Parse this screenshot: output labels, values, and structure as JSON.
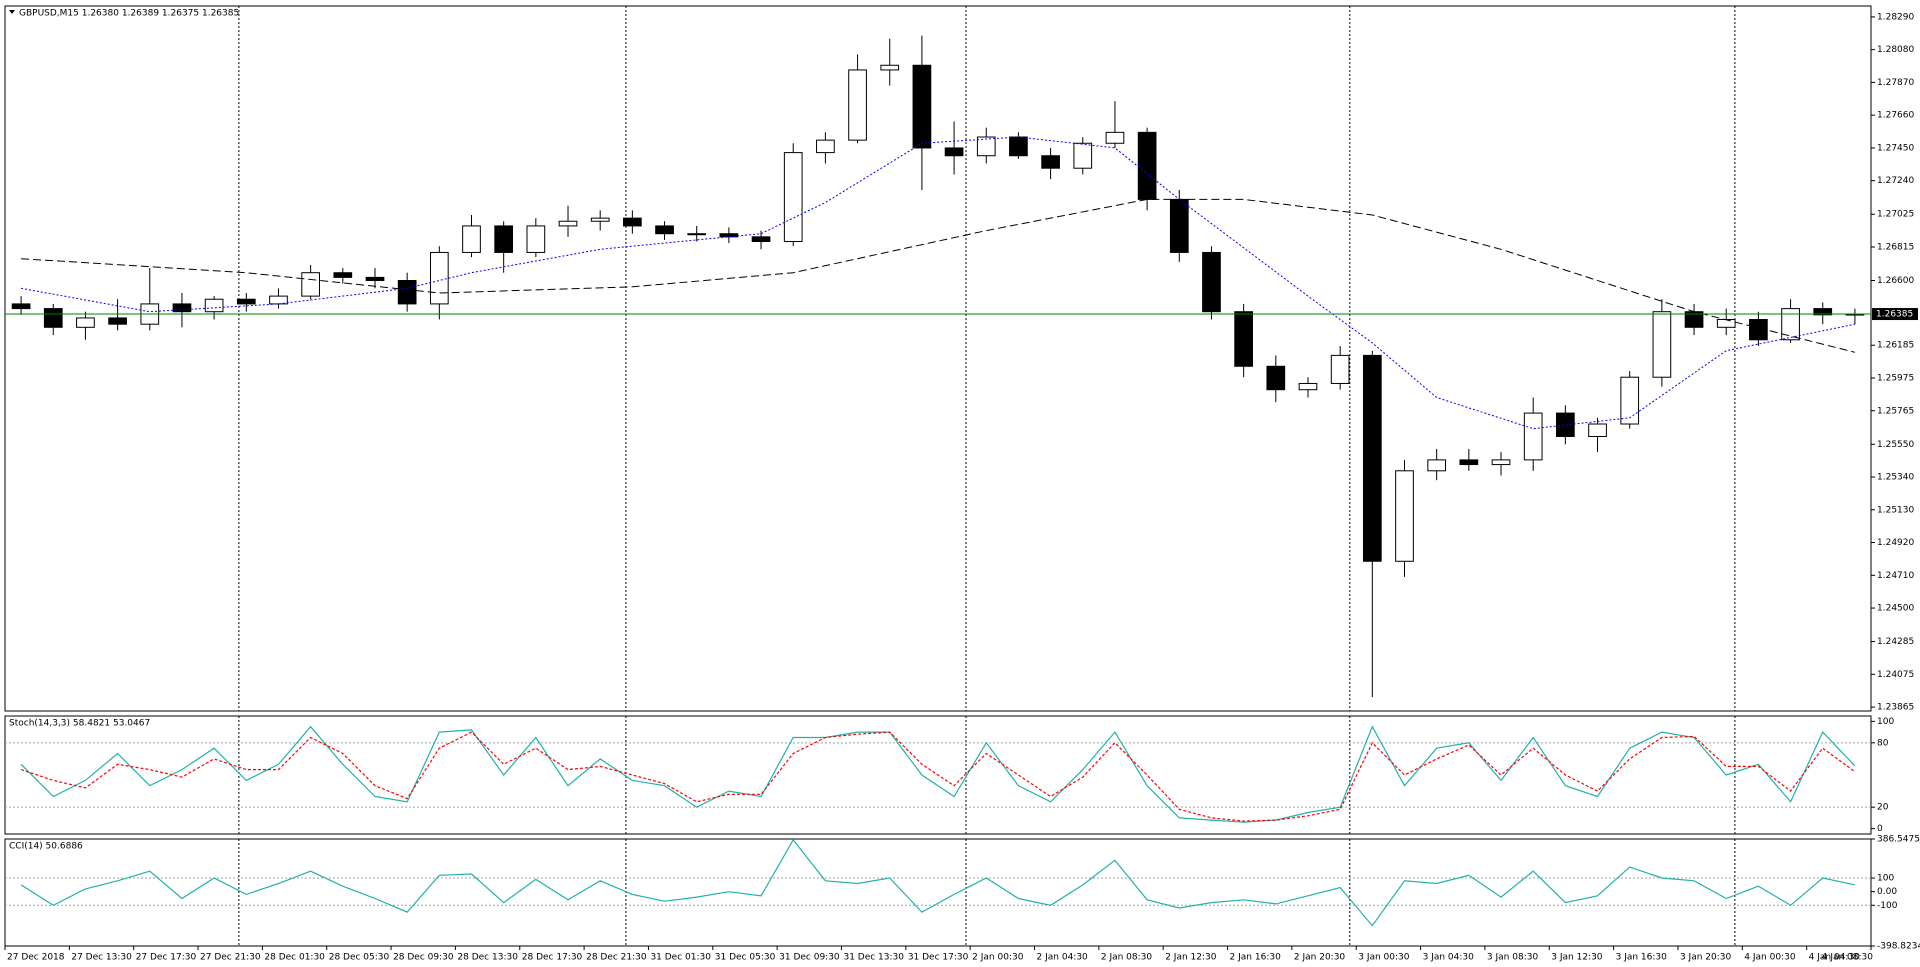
{
  "chart_data": [
    {
      "type": "candlestick",
      "title": "GBPUSD,M15  1.26380 1.26389 1.26375 1.26385",
      "open": [
        1.2645,
        1.2642,
        1.263,
        1.2636,
        1.2632,
        1.2645,
        1.264,
        1.2648,
        1.2645,
        1.265,
        1.2665,
        1.2662,
        1.266,
        1.2645,
        1.2678,
        1.2695,
        1.2678,
        1.2695,
        1.2698,
        1.27,
        1.2695,
        1.269,
        1.269,
        1.2688,
        1.2685,
        1.2742,
        1.275,
        1.2795,
        1.2798,
        1.2745,
        1.274,
        1.2752,
        1.274,
        1.2732,
        1.2748,
        1.2755,
        1.2712,
        1.2678,
        1.264,
        1.2605,
        1.259,
        1.2594,
        1.2612,
        1.248,
        1.2538,
        1.2545,
        1.2542,
        1.2545,
        1.2575,
        1.256,
        1.2568,
        1.2598,
        1.264,
        1.263,
        1.2635,
        1.2622,
        1.2642,
        1.2638
      ],
      "high": [
        1.265,
        1.2645,
        1.264,
        1.2648,
        1.2668,
        1.2652,
        1.265,
        1.2652,
        1.2655,
        1.267,
        1.2668,
        1.2668,
        1.2665,
        1.2682,
        1.2702,
        1.2698,
        1.27,
        1.2708,
        1.2705,
        1.2705,
        1.2698,
        1.2695,
        1.2694,
        1.2692,
        1.2748,
        1.2755,
        1.2805,
        1.2815,
        1.2817,
        1.2762,
        1.2758,
        1.2755,
        1.2745,
        1.2752,
        1.2775,
        1.2758,
        1.2718,
        1.2682,
        1.2645,
        1.2612,
        1.2598,
        1.2618,
        1.2615,
        1.2545,
        1.2552,
        1.2552,
        1.255,
        1.2585,
        1.258,
        1.2572,
        1.2602,
        1.2648,
        1.2645,
        1.2642,
        1.264,
        1.2648,
        1.2646,
        1.2642
      ],
      "low": [
        1.2638,
        1.2625,
        1.2622,
        1.2628,
        1.2628,
        1.263,
        1.2635,
        1.264,
        1.2642,
        1.2648,
        1.2658,
        1.2655,
        1.264,
        1.2635,
        1.2675,
        1.2665,
        1.2675,
        1.2688,
        1.2692,
        1.269,
        1.2686,
        1.2685,
        1.2684,
        1.268,
        1.2682,
        1.2735,
        1.2748,
        1.2785,
        1.2718,
        1.2728,
        1.2735,
        1.2738,
        1.2725,
        1.2728,
        1.2745,
        1.2705,
        1.2672,
        1.2635,
        1.2598,
        1.2582,
        1.2585,
        1.259,
        1.2393,
        1.247,
        1.2532,
        1.2538,
        1.2535,
        1.2538,
        1.2555,
        1.255,
        1.2565,
        1.2592,
        1.2625,
        1.2625,
        1.2618,
        1.262,
        1.2632,
        1.2632
      ],
      "close": [
        1.2642,
        1.263,
        1.2636,
        1.2632,
        1.2645,
        1.264,
        1.2648,
        1.2645,
        1.265,
        1.2665,
        1.2662,
        1.266,
        1.2645,
        1.2678,
        1.2695,
        1.2678,
        1.2695,
        1.2698,
        1.27,
        1.2695,
        1.269,
        1.269,
        1.2688,
        1.2685,
        1.2742,
        1.275,
        1.2795,
        1.2798,
        1.2745,
        1.274,
        1.2752,
        1.274,
        1.2732,
        1.2748,
        1.2755,
        1.2712,
        1.2678,
        1.264,
        1.2605,
        1.259,
        1.2594,
        1.2612,
        1.248,
        1.2538,
        1.2545,
        1.2542,
        1.2545,
        1.2575,
        1.256,
        1.2568,
        1.2598,
        1.264,
        1.263,
        1.2635,
        1.2622,
        1.2642,
        1.2638,
        1.26385
      ],
      "series": [
        {
          "color": "#0000ff",
          "x": [
            0,
            4,
            8,
            12,
            14,
            18,
            23,
            25,
            28,
            31,
            34,
            36,
            40,
            42,
            44,
            47,
            50,
            53,
            57
          ],
          "values": [
            1.2655,
            1.264,
            1.2645,
            1.2655,
            1.2665,
            1.268,
            1.269,
            1.271,
            1.2748,
            1.2752,
            1.2745,
            1.2712,
            1.265,
            1.262,
            1.2585,
            1.2565,
            1.2572,
            1.2615,
            1.2632
          ]
        },
        {
          "color": "#000000",
          "x": [
            0,
            7,
            13,
            19,
            24,
            30,
            35,
            38,
            42,
            46,
            52,
            57
          ],
          "values": [
            1.2674,
            1.2665,
            1.2652,
            1.2656,
            1.2665,
            1.2692,
            1.2712,
            1.2712,
            1.2702,
            1.268,
            1.264,
            1.2614
          ]
        }
      ],
      "bid_line": 1.26385,
      "bid_color": "#008000",
      "ylim": [
        1.2384,
        1.2836
      ],
      "yticks": [
        {
          "value": 1.2829,
          "label": "1.28290"
        },
        {
          "value": 1.2808,
          "label": "1.28080"
        },
        {
          "value": 1.2787,
          "label": "1.27870"
        },
        {
          "value": 1.2766,
          "label": "1.27660"
        },
        {
          "value": 1.2745,
          "label": "1.27450"
        },
        {
          "value": 1.2724,
          "label": "1.27240"
        },
        1.27025,
        1.26815,
        {
          "value": 1.266,
          "label": "1.26600"
        },
        1.26185,
        1.25975,
        1.25765,
        {
          "value": 1.2555,
          "label": "1.25550"
        },
        {
          "value": 1.2534,
          "label": "1.25340"
        },
        {
          "value": 1.2513,
          "label": "1.25130"
        },
        {
          "value": 1.2492,
          "label": "1.24920"
        },
        {
          "value": 1.2471,
          "label": "1.24710"
        },
        {
          "value": 1.245,
          "label": "1.24500"
        },
        1.24285,
        1.24075,
        1.23865
      ],
      "xlim": [
        0,
        58
      ],
      "xticks": [
        {
          "value": 0,
          "label": "27 Dec 2018"
        },
        {
          "value": 2,
          "label": "27 Dec 13:30"
        },
        {
          "value": 4,
          "label": "27 Dec 17:30"
        },
        {
          "value": 6,
          "label": "27 Dec 21:30"
        },
        {
          "value": 8,
          "label": "28 Dec 01:30"
        },
        {
          "value": 10,
          "label": "28 Dec 05:30"
        },
        {
          "value": 12,
          "label": "28 Dec 09:30"
        },
        {
          "value": 14,
          "label": "28 Dec 13:30"
        },
        {
          "value": 16,
          "label": "28 Dec 17:30"
        },
        {
          "value": 18,
          "label": "28 Dec 21:30"
        },
        {
          "value": 20,
          "label": "31 Dec 01:30"
        },
        {
          "value": 22,
          "label": "31 Dec 05:30"
        },
        {
          "value": 24,
          "label": "31 Dec 09:30"
        },
        {
          "value": 26,
          "label": "31 Dec 13:30"
        },
        {
          "value": 28,
          "label": "31 Dec 17:30"
        },
        {
          "value": 30,
          "label": "2 Jan 00:30"
        },
        {
          "value": 32,
          "label": "2 Jan 04:30"
        },
        {
          "value": 34,
          "label": "2 Jan 08:30"
        },
        {
          "value": 36,
          "label": "2 Jan 12:30"
        },
        {
          "value": 38,
          "label": "2 Jan 16:30"
        },
        {
          "value": 40,
          "label": "2 Jan 20:30"
        },
        {
          "value": 42,
          "label": "3 Jan 00:30"
        },
        {
          "value": 44,
          "label": "3 Jan 04:30"
        },
        {
          "value": 46,
          "label": "3 Jan 08:30"
        },
        {
          "value": 48,
          "label": "3 Jan 12:30"
        },
        {
          "value": 50,
          "label": "3 Jan 16:30"
        },
        {
          "value": 52,
          "label": "3 Jan 20:30"
        },
        {
          "value": 54,
          "label": "4 Jan 00:30"
        },
        {
          "value": 56,
          "label": "4 Jan 04:30"
        },
        {
          "value": 58,
          "label": "4 Jan 08:30"
        }
      ],
      "separators": [
        7.27,
        19.3,
        29.87,
        41.8,
        53.77
      ],
      "grid": false
    },
    {
      "type": "line",
      "title": "Stoch(14,3,3) 58.4821 53.0467",
      "series": [
        {
          "color": "#20b2aa",
          "values": [
            60,
            30,
            45,
            70,
            40,
            55,
            75,
            45,
            60,
            95,
            60,
            30,
            25,
            90,
            92,
            50,
            85,
            40,
            65,
            45,
            40,
            20,
            35,
            30,
            85,
            85,
            90,
            90,
            50,
            30,
            80,
            40,
            25,
            55,
            90,
            40,
            10,
            8,
            6,
            8,
            15,
            20,
            95,
            40,
            75,
            80,
            45,
            85,
            40,
            30,
            75,
            90,
            85,
            50,
            60,
            25,
            90,
            58.4821
          ]
        },
        {
          "color": "#ff0000",
          "dashed": true,
          "values": [
            55,
            45,
            38,
            60,
            55,
            48,
            65,
            55,
            55,
            85,
            70,
            40,
            28,
            75,
            90,
            60,
            75,
            55,
            58,
            50,
            42,
            25,
            32,
            32,
            70,
            85,
            88,
            90,
            60,
            40,
            70,
            50,
            30,
            48,
            80,
            50,
            18,
            10,
            7,
            8,
            12,
            18,
            80,
            50,
            65,
            78,
            50,
            75,
            50,
            35,
            65,
            85,
            86,
            58,
            58,
            35,
            75,
            53.0467
          ]
        }
      ],
      "ylim": [
        -5,
        105
      ],
      "yticks": [
        100,
        80,
        20,
        0
      ],
      "levels": [
        80,
        20
      ]
    },
    {
      "type": "line",
      "title": "CCI(14) 50.6886",
      "series": [
        {
          "color": "#20b2aa",
          "values": [
            50,
            -100,
            20,
            80,
            150,
            -50,
            100,
            -20,
            60,
            150,
            40,
            -50,
            -150,
            120,
            130,
            -80,
            90,
            -60,
            80,
            -20,
            -70,
            -40,
            0,
            -30,
            380,
            80,
            60,
            100,
            -150,
            -20,
            100,
            -50,
            -100,
            50,
            230,
            -60,
            -120,
            -80,
            -60,
            -90,
            -30,
            30,
            -250,
            80,
            60,
            120,
            -40,
            150,
            -80,
            -30,
            180,
            100,
            80,
            -50,
            40,
            -100,
            100,
            50.6886
          ]
        }
      ],
      "ylim": [
        -398.8234,
        386.5475
      ],
      "yticks": [
        386.5475,
        100,
        {
          "value": 0,
          "label": "0.00"
        },
        -100,
        -398.8234
      ],
      "levels": [
        100,
        -100
      ]
    }
  ]
}
